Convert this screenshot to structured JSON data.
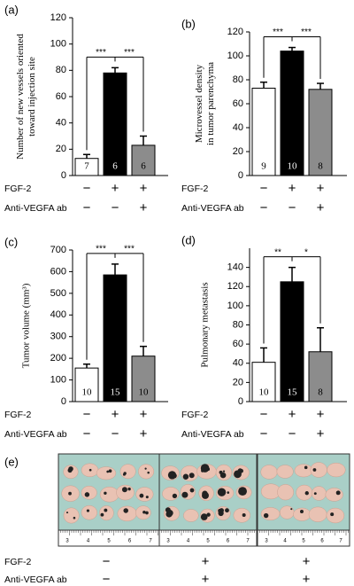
{
  "chart_data": [
    {
      "type": "bar",
      "label": "(a)",
      "ylabel": [
        "Number of new vessels oriented",
        "toward injection site"
      ],
      "ylim": [
        0,
        120
      ],
      "yticks": [
        0,
        20,
        40,
        60,
        80,
        100,
        120
      ],
      "values": [
        13,
        78,
        23
      ],
      "errors": [
        3,
        4,
        7
      ],
      "colors": [
        "#ffffff",
        "#000000",
        "#8c8c8c"
      ],
      "n_labels": [
        "7",
        "6",
        "6"
      ],
      "significance": [
        "***",
        "***"
      ],
      "rows": [
        {
          "name": "FGF-2",
          "signs": [
            "−",
            "+",
            "+"
          ]
        },
        {
          "name": "Anti-VEGFA ab",
          "signs": [
            "−",
            "−",
            "+"
          ]
        }
      ]
    },
    {
      "type": "bar",
      "label": "(b)",
      "ylabel": [
        "Microvessel density",
        "in tumor parenchyma"
      ],
      "ylim": [
        0,
        120
      ],
      "yticks": [
        0,
        20,
        40,
        60,
        80,
        100,
        120
      ],
      "values": [
        73,
        104,
        72
      ],
      "errors": [
        5,
        3,
        5
      ],
      "colors": [
        "#ffffff",
        "#000000",
        "#8c8c8c"
      ],
      "n_labels": [
        "9",
        "10",
        "8"
      ],
      "significance": [
        "***",
        "***"
      ],
      "rows": [
        {
          "name": "FGF-2",
          "signs": [
            "−",
            "+",
            "+"
          ]
        },
        {
          "name": "Anti-VEGFA ab",
          "signs": [
            "−",
            "−",
            "+"
          ]
        }
      ]
    },
    {
      "type": "bar",
      "label": "(c)",
      "ylabel": [
        "Tumor volume (mm³)"
      ],
      "ylim": [
        0,
        700
      ],
      "yticks": [
        0,
        100,
        200,
        300,
        400,
        500,
        600,
        700
      ],
      "values": [
        155,
        585,
        210
      ],
      "errors": [
        18,
        50,
        45
      ],
      "colors": [
        "#ffffff",
        "#000000",
        "#8c8c8c"
      ],
      "n_labels": [
        "10",
        "15",
        "10"
      ],
      "significance": [
        "***",
        "***"
      ],
      "rows": [
        {
          "name": "FGF-2",
          "signs": [
            "−",
            "+",
            "+"
          ]
        },
        {
          "name": "Anti-VEGFA ab",
          "signs": [
            "−",
            "−",
            "+"
          ]
        }
      ]
    },
    {
      "type": "bar",
      "label": "(d)",
      "ylabel": [
        "Pulmonary metastasis"
      ],
      "ylim": [
        0,
        160
      ],
      "yticks": [
        0,
        20,
        40,
        60,
        80,
        100,
        120,
        140
      ],
      "values": [
        41,
        125,
        52
      ],
      "errors": [
        15,
        15,
        25
      ],
      "colors": [
        "#ffffff",
        "#000000",
        "#8c8c8c"
      ],
      "n_labels": [
        "10",
        "15",
        "8"
      ],
      "significance": [
        "**",
        "*"
      ],
      "rows": [
        {
          "name": "FGF-2",
          "signs": [
            "−",
            "+",
            "+"
          ]
        },
        {
          "name": "Anti-VEGFA ab",
          "signs": [
            "−",
            "−",
            "+"
          ]
        }
      ]
    }
  ],
  "photo": {
    "label": "(e)",
    "ruler_labels": [
      "3",
      "4",
      "5",
      "6",
      "7"
    ],
    "rows": [
      {
        "name": "FGF-2",
        "signs": [
          "−",
          "+",
          "+"
        ]
      },
      {
        "name": "Anti-VEGFA ab",
        "signs": [
          "−",
          "+",
          "+"
        ]
      }
    ]
  }
}
